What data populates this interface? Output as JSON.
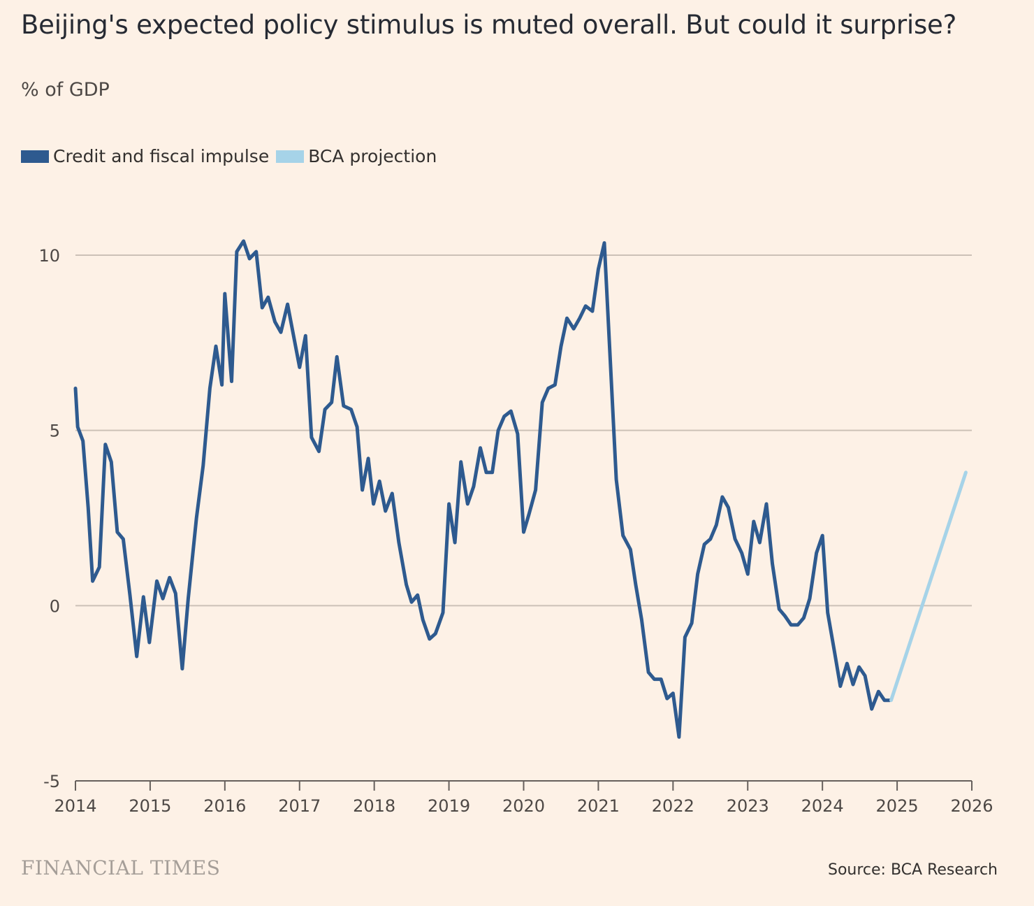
{
  "title": "Beijing's expected policy stimulus is muted overall. But could it surprise?",
  "subtitle": "% of GDP",
  "source": "Source: BCA Research",
  "brand": "FINANCIAL TIMES",
  "colors": {
    "background": "#fdf1e6",
    "impulse": "#2e5a8f",
    "projection": "#a6d3e8",
    "grid": "#ccc1b7",
    "axis": "#66605c"
  },
  "chart_data": {
    "type": "line",
    "xlim": [
      2014,
      2026
    ],
    "ylim": [
      -5,
      10
    ],
    "y_ticks": [
      10,
      5,
      0,
      -5
    ],
    "x_ticks": [
      2014,
      2015,
      2016,
      2017,
      2018,
      2019,
      2020,
      2021,
      2022,
      2023,
      2024,
      2025,
      2026
    ],
    "grid": "horizontal",
    "legend_position": "top-left",
    "series": [
      {
        "name": "Credit and fiscal impulse",
        "color": "#2e5a8f",
        "points": [
          [
            2014.0,
            6.2
          ],
          [
            2014.03,
            5.1
          ],
          [
            2014.1,
            4.7
          ],
          [
            2014.17,
            2.8
          ],
          [
            2014.23,
            0.7
          ],
          [
            2014.32,
            1.1
          ],
          [
            2014.4,
            4.6
          ],
          [
            2014.48,
            4.1
          ],
          [
            2014.56,
            2.1
          ],
          [
            2014.64,
            1.9
          ],
          [
            2014.73,
            0.3
          ],
          [
            2014.82,
            -1.45
          ],
          [
            2014.91,
            0.25
          ],
          [
            2014.99,
            -1.05
          ],
          [
            2015.09,
            0.7
          ],
          [
            2015.17,
            0.2
          ],
          [
            2015.26,
            0.8
          ],
          [
            2015.34,
            0.35
          ],
          [
            2015.43,
            -1.8
          ],
          [
            2015.51,
            0.2
          ],
          [
            2015.62,
            2.5
          ],
          [
            2015.71,
            4.0
          ],
          [
            2015.8,
            6.2
          ],
          [
            2015.88,
            7.4
          ],
          [
            2015.96,
            6.3
          ],
          [
            2016.0,
            8.9
          ],
          [
            2016.09,
            6.4
          ],
          [
            2016.16,
            10.1
          ],
          [
            2016.25,
            10.4
          ],
          [
            2016.33,
            9.9
          ],
          [
            2016.42,
            10.1
          ],
          [
            2016.5,
            8.5
          ],
          [
            2016.58,
            8.8
          ],
          [
            2016.67,
            8.1
          ],
          [
            2016.75,
            7.8
          ],
          [
            2016.84,
            8.6
          ],
          [
            2016.92,
            7.7
          ],
          [
            2017.0,
            6.8
          ],
          [
            2017.08,
            7.7
          ],
          [
            2017.16,
            4.8
          ],
          [
            2017.26,
            4.4
          ],
          [
            2017.34,
            5.6
          ],
          [
            2017.43,
            5.8
          ],
          [
            2017.5,
            7.1
          ],
          [
            2017.59,
            5.7
          ],
          [
            2017.69,
            5.6
          ],
          [
            2017.77,
            5.1
          ],
          [
            2017.84,
            3.3
          ],
          [
            2017.92,
            4.2
          ],
          [
            2017.99,
            2.9
          ],
          [
            2018.07,
            3.55
          ],
          [
            2018.15,
            2.7
          ],
          [
            2018.24,
            3.2
          ],
          [
            2018.33,
            1.8
          ],
          [
            2018.43,
            0.6
          ],
          [
            2018.5,
            0.1
          ],
          [
            2018.58,
            0.3
          ],
          [
            2018.65,
            -0.4
          ],
          [
            2018.74,
            -0.95
          ],
          [
            2018.82,
            -0.8
          ],
          [
            2018.92,
            -0.2
          ],
          [
            2019.0,
            2.9
          ],
          [
            2019.08,
            1.8
          ],
          [
            2019.16,
            4.1
          ],
          [
            2019.25,
            2.9
          ],
          [
            2019.33,
            3.4
          ],
          [
            2019.42,
            4.5
          ],
          [
            2019.5,
            3.8
          ],
          [
            2019.58,
            3.8
          ],
          [
            2019.66,
            5.0
          ],
          [
            2019.74,
            5.4
          ],
          [
            2019.83,
            5.55
          ],
          [
            2019.92,
            4.9
          ],
          [
            2020.0,
            2.1
          ],
          [
            2020.07,
            2.6
          ],
          [
            2020.16,
            3.3
          ],
          [
            2020.25,
            5.8
          ],
          [
            2020.33,
            6.2
          ],
          [
            2020.42,
            6.3
          ],
          [
            2020.5,
            7.4
          ],
          [
            2020.58,
            8.2
          ],
          [
            2020.67,
            7.9
          ],
          [
            2020.75,
            8.2
          ],
          [
            2020.83,
            8.55
          ],
          [
            2020.92,
            8.4
          ],
          [
            2021.0,
            9.6
          ],
          [
            2021.08,
            10.35
          ],
          [
            2021.16,
            7.0
          ],
          [
            2021.24,
            3.6
          ],
          [
            2021.33,
            2.0
          ],
          [
            2021.43,
            1.6
          ],
          [
            2021.5,
            0.6
          ],
          [
            2021.58,
            -0.4
          ],
          [
            2021.67,
            -1.9
          ],
          [
            2021.75,
            -2.1
          ],
          [
            2021.84,
            -2.1
          ],
          [
            2021.92,
            -2.65
          ],
          [
            2022.0,
            -2.5
          ],
          [
            2022.08,
            -3.75
          ],
          [
            2022.16,
            -0.9
          ],
          [
            2022.25,
            -0.5
          ],
          [
            2022.33,
            0.9
          ],
          [
            2022.42,
            1.75
          ],
          [
            2022.5,
            1.9
          ],
          [
            2022.58,
            2.3
          ],
          [
            2022.66,
            3.1
          ],
          [
            2022.74,
            2.8
          ],
          [
            2022.83,
            1.9
          ],
          [
            2022.92,
            1.5
          ],
          [
            2023.0,
            0.9
          ],
          [
            2023.08,
            2.4
          ],
          [
            2023.16,
            1.8
          ],
          [
            2023.25,
            2.9
          ],
          [
            2023.33,
            1.2
          ],
          [
            2023.42,
            -0.1
          ],
          [
            2023.5,
            -0.3
          ],
          [
            2023.58,
            -0.55
          ],
          [
            2023.67,
            -0.55
          ],
          [
            2023.75,
            -0.35
          ],
          [
            2023.83,
            0.2
          ],
          [
            2023.92,
            1.5
          ],
          [
            2024.0,
            2.0
          ],
          [
            2024.07,
            -0.2
          ],
          [
            2024.16,
            -1.3
          ],
          [
            2024.24,
            -2.3
          ],
          [
            2024.33,
            -1.65
          ],
          [
            2024.41,
            -2.25
          ],
          [
            2024.49,
            -1.75
          ],
          [
            2024.57,
            -2.0
          ],
          [
            2024.66,
            -2.95
          ],
          [
            2024.75,
            -2.45
          ],
          [
            2024.83,
            -2.7
          ],
          [
            2024.9,
            -2.7
          ]
        ]
      },
      {
        "name": "BCA projection",
        "color": "#a6d3e8",
        "points": [
          [
            2024.92,
            -2.7
          ],
          [
            2025.92,
            3.8
          ]
        ]
      }
    ]
  }
}
